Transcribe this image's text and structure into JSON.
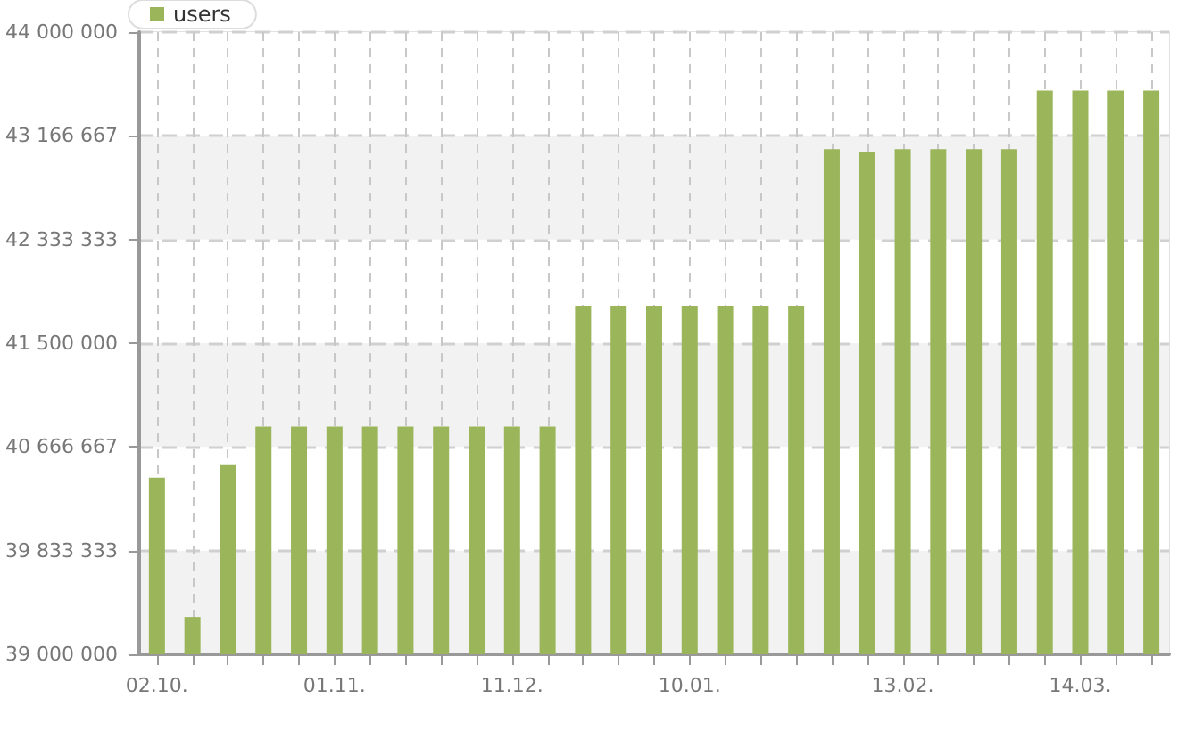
{
  "chart_data": {
    "type": "bar",
    "categories": [
      "02.10.",
      null,
      null,
      null,
      null,
      "01.11.",
      null,
      null,
      null,
      null,
      "11.12.",
      null,
      null,
      null,
      null,
      "10.01.",
      null,
      null,
      null,
      null,
      null,
      "13.02.",
      null,
      null,
      null,
      null,
      "14.03.",
      null,
      null
    ],
    "series": [
      {
        "name": "users",
        "color": "#9bb55a",
        "values": [
          40420000,
          39300000,
          40520000,
          40830000,
          40830000,
          40830000,
          40830000,
          40830000,
          40830000,
          40830000,
          40830000,
          40830000,
          41800000,
          41800000,
          41800000,
          41800000,
          41800000,
          41800000,
          41800000,
          43060000,
          43040000,
          43060000,
          43060000,
          43060000,
          43060000,
          43530000,
          43530000,
          43530000,
          43530000
        ]
      }
    ],
    "ylim": [
      39000000,
      44000000
    ],
    "yticks": [
      {
        "value": 39000000,
        "label": "39 000 000"
      },
      {
        "value": 39833333,
        "label": "39 833 333"
      },
      {
        "value": 40666667,
        "label": "40 666 667"
      },
      {
        "value": 41500000,
        "label": "41 500 000"
      },
      {
        "value": 42333333,
        "label": "42 333 333"
      },
      {
        "value": 43166667,
        "label": "43 166 667"
      },
      {
        "value": 44000000,
        "label": "44 000 000"
      }
    ],
    "grid": true,
    "legend": "top left"
  }
}
